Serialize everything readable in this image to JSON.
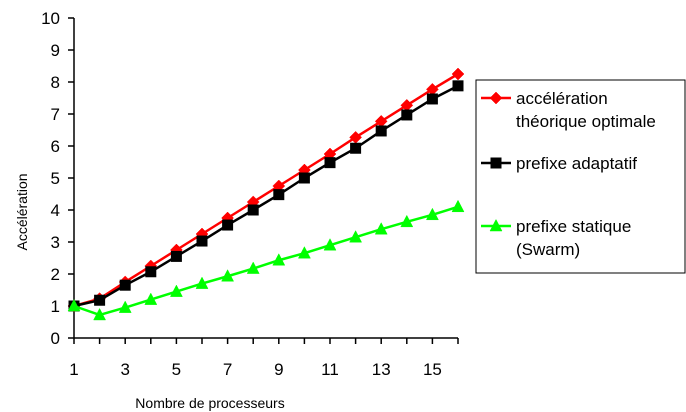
{
  "chart_data": {
    "type": "line",
    "title": "",
    "xlabel": "Nombre de processeurs",
    "ylabel": "Accélération",
    "xlim": [
      1,
      16
    ],
    "ylim": [
      0,
      10
    ],
    "x_ticks": [
      1,
      3,
      5,
      7,
      9,
      11,
      13,
      15
    ],
    "y_ticks": [
      0,
      1,
      2,
      3,
      4,
      5,
      6,
      7,
      8,
      9,
      10
    ],
    "grid": false,
    "legend_position": "right",
    "x": [
      1,
      2,
      3,
      4,
      5,
      6,
      7,
      8,
      9,
      10,
      11,
      12,
      13,
      14,
      15,
      16
    ],
    "series": [
      {
        "name_lines": [
          "accélération",
          "théorique optimale"
        ],
        "color": "#ff0000",
        "marker": "diamond",
        "values": [
          1.0,
          1.23,
          1.75,
          2.25,
          2.75,
          3.25,
          3.75,
          4.25,
          4.75,
          5.25,
          5.75,
          6.27,
          6.77,
          7.27,
          7.77,
          8.25
        ]
      },
      {
        "name_lines": [
          "prefixe adaptatif"
        ],
        "color": "#000000",
        "marker": "square",
        "values": [
          1.0,
          1.18,
          1.65,
          2.07,
          2.55,
          3.03,
          3.53,
          4.0,
          4.48,
          5.0,
          5.48,
          5.93,
          6.47,
          6.97,
          7.47,
          7.88
        ]
      },
      {
        "name_lines": [
          "prefixe statique",
          "(Swarm)"
        ],
        "color": "#00ff00",
        "marker": "triangle",
        "values": [
          1.0,
          0.72,
          0.95,
          1.2,
          1.45,
          1.7,
          1.93,
          2.17,
          2.43,
          2.65,
          2.9,
          3.15,
          3.4,
          3.63,
          3.85,
          4.1
        ]
      }
    ]
  }
}
